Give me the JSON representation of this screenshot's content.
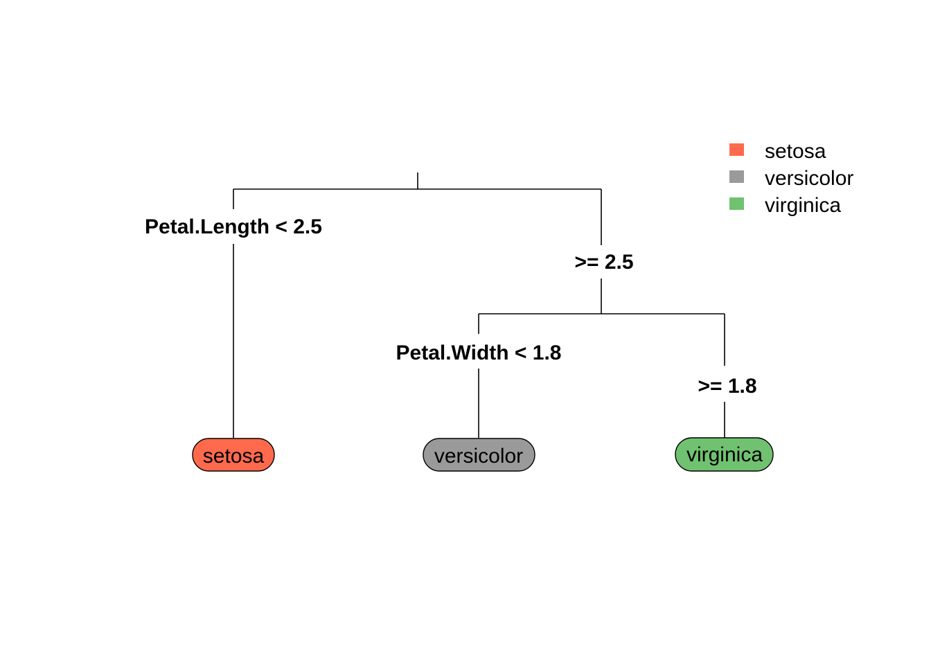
{
  "diagram": {
    "type": "decision-tree",
    "root": {
      "split_label": "Petal.Length < 2.5",
      "right_label": ">= 2.5"
    },
    "inner": {
      "split_label": "Petal.Width < 1.8",
      "right_label": ">= 1.8"
    },
    "leaves": [
      {
        "label": "setosa",
        "color": "#FF6A4D"
      },
      {
        "label": "versicolor",
        "color": "#9A9A9A"
      },
      {
        "label": "virginica",
        "color": "#70C270"
      }
    ]
  },
  "legend": {
    "items": [
      {
        "label": "setosa",
        "color": "#FF6A4D"
      },
      {
        "label": "versicolor",
        "color": "#9A9A9A"
      },
      {
        "label": "virginica",
        "color": "#70C270"
      }
    ]
  }
}
